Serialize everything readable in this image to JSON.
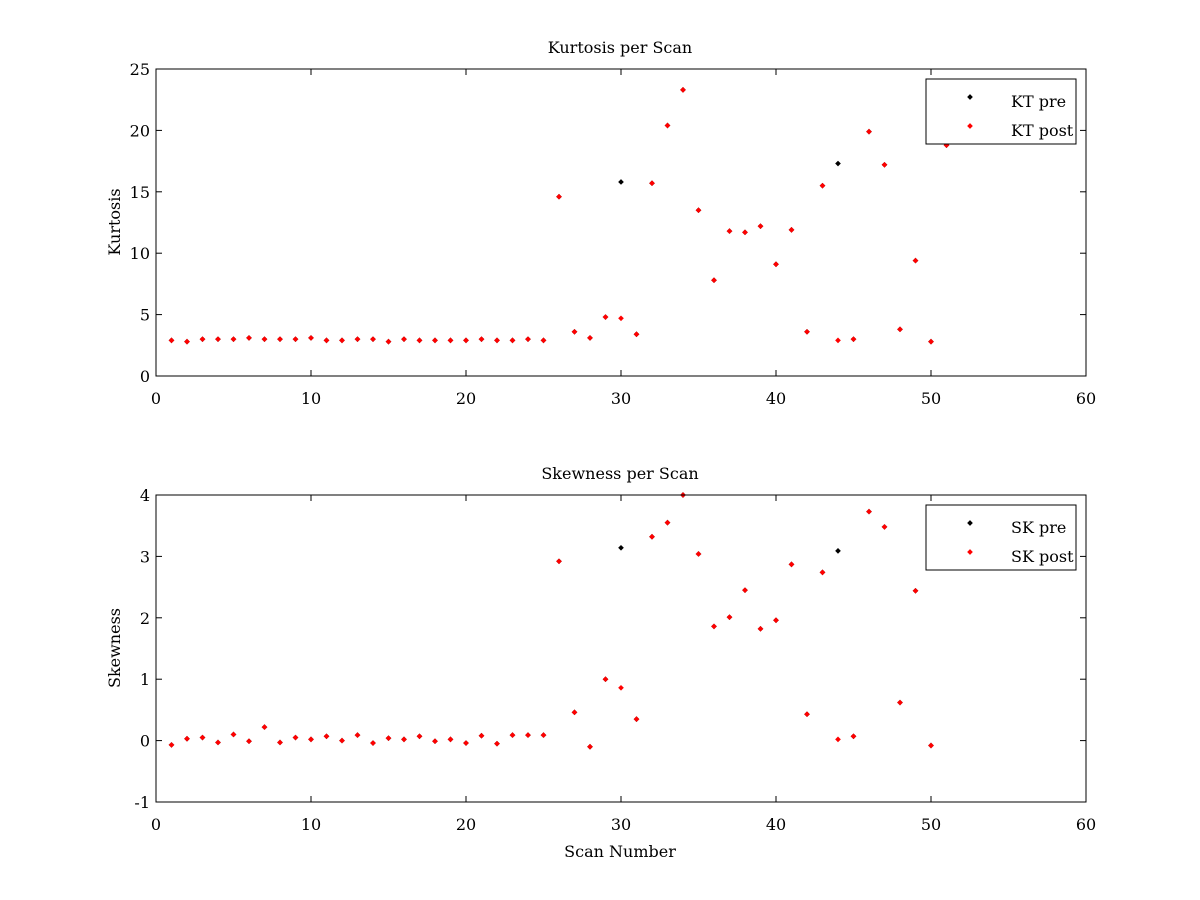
{
  "colors": {
    "pre": "#000000",
    "post": "#ff0000",
    "axis": "#000000",
    "background": "#ffffff"
  },
  "chart_data": [
    {
      "type": "scatter",
      "title": "Kurtosis per Scan",
      "xlabel": "",
      "ylabel": "Kurtosis",
      "xlim": [
        0,
        60
      ],
      "ylim": [
        0,
        25
      ],
      "xticks": [
        0,
        10,
        20,
        30,
        40,
        50,
        60
      ],
      "yticks": [
        0,
        5,
        10,
        15,
        20,
        25
      ],
      "legend_position": "top-right",
      "series": [
        {
          "name": "KT pre",
          "color": "#000000",
          "points": [
            [
              1,
              2.9
            ],
            [
              2,
              2.8
            ],
            [
              3,
              3.0
            ],
            [
              4,
              3.0
            ],
            [
              5,
              3.0
            ],
            [
              6,
              3.1
            ],
            [
              7,
              3.0
            ],
            [
              8,
              3.0
            ],
            [
              9,
              3.0
            ],
            [
              10,
              3.1
            ],
            [
              11,
              2.9
            ],
            [
              12,
              2.9
            ],
            [
              13,
              3.0
            ],
            [
              14,
              3.0
            ],
            [
              15,
              2.8
            ],
            [
              16,
              3.0
            ],
            [
              17,
              2.9
            ],
            [
              18,
              2.9
            ],
            [
              19,
              2.9
            ],
            [
              20,
              2.9
            ],
            [
              21,
              3.0
            ],
            [
              22,
              2.9
            ],
            [
              23,
              2.9
            ],
            [
              24,
              3.0
            ],
            [
              25,
              2.9
            ],
            [
              26,
              14.6
            ],
            [
              27,
              3.6
            ],
            [
              28,
              3.1
            ],
            [
              29,
              4.8
            ],
            [
              30,
              15.8
            ],
            [
              31,
              3.4
            ],
            [
              32,
              15.7
            ],
            [
              33,
              20.4
            ],
            [
              34,
              23.3
            ],
            [
              35,
              13.5
            ],
            [
              36,
              7.8
            ],
            [
              37,
              11.8
            ],
            [
              38,
              11.7
            ],
            [
              39,
              12.2
            ],
            [
              40,
              9.1
            ],
            [
              41,
              11.9
            ],
            [
              42,
              3.6
            ],
            [
              43,
              15.5
            ],
            [
              44,
              17.3
            ],
            [
              45,
              3.0
            ],
            [
              46,
              19.9
            ],
            [
              47,
              17.2
            ],
            [
              48,
              3.8
            ],
            [
              49,
              9.4
            ],
            [
              50,
              2.8
            ],
            [
              51,
              18.8
            ]
          ]
        },
        {
          "name": "KT post",
          "color": "#ff0000",
          "points": [
            [
              1,
              2.9
            ],
            [
              2,
              2.8
            ],
            [
              3,
              3.0
            ],
            [
              4,
              3.0
            ],
            [
              5,
              3.0
            ],
            [
              6,
              3.1
            ],
            [
              7,
              3.0
            ],
            [
              8,
              3.0
            ],
            [
              9,
              3.0
            ],
            [
              10,
              3.1
            ],
            [
              11,
              2.9
            ],
            [
              12,
              2.9
            ],
            [
              13,
              3.0
            ],
            [
              14,
              3.0
            ],
            [
              15,
              2.8
            ],
            [
              16,
              3.0
            ],
            [
              17,
              2.9
            ],
            [
              18,
              2.9
            ],
            [
              19,
              2.9
            ],
            [
              20,
              2.9
            ],
            [
              21,
              3.0
            ],
            [
              22,
              2.9
            ],
            [
              23,
              2.9
            ],
            [
              24,
              3.0
            ],
            [
              25,
              2.9
            ],
            [
              26,
              14.6
            ],
            [
              27,
              3.6
            ],
            [
              28,
              3.1
            ],
            [
              29,
              4.8
            ],
            [
              30,
              4.7
            ],
            [
              31,
              3.4
            ],
            [
              32,
              15.7
            ],
            [
              33,
              20.4
            ],
            [
              34,
              23.3
            ],
            [
              35,
              13.5
            ],
            [
              36,
              7.8
            ],
            [
              37,
              11.8
            ],
            [
              38,
              11.7
            ],
            [
              39,
              12.2
            ],
            [
              40,
              9.1
            ],
            [
              41,
              11.9
            ],
            [
              42,
              3.6
            ],
            [
              43,
              15.5
            ],
            [
              44,
              2.9
            ],
            [
              45,
              3.0
            ],
            [
              46,
              19.9
            ],
            [
              47,
              17.2
            ],
            [
              48,
              3.8
            ],
            [
              49,
              9.4
            ],
            [
              50,
              2.8
            ],
            [
              51,
              18.8
            ]
          ]
        }
      ]
    },
    {
      "type": "scatter",
      "title": "Skewness per Scan",
      "xlabel": "Scan Number",
      "ylabel": "Skewness",
      "xlim": [
        0,
        60
      ],
      "ylim": [
        -1,
        4
      ],
      "xticks": [
        0,
        10,
        20,
        30,
        40,
        50,
        60
      ],
      "yticks": [
        -1,
        0,
        1,
        2,
        3,
        4
      ],
      "legend_position": "top-right",
      "series": [
        {
          "name": "SK pre",
          "color": "#000000",
          "points": [
            [
              1,
              -0.07
            ],
            [
              2,
              0.03
            ],
            [
              3,
              0.05
            ],
            [
              4,
              -0.03
            ],
            [
              5,
              0.1
            ],
            [
              6,
              -0.01
            ],
            [
              7,
              0.22
            ],
            [
              8,
              -0.03
            ],
            [
              9,
              0.05
            ],
            [
              10,
              0.02
            ],
            [
              11,
              0.07
            ],
            [
              12,
              0.0
            ],
            [
              13,
              0.09
            ],
            [
              14,
              -0.04
            ],
            [
              15,
              0.04
            ],
            [
              16,
              0.02
            ],
            [
              17,
              0.07
            ],
            [
              18,
              -0.01
            ],
            [
              19,
              0.02
            ],
            [
              20,
              -0.04
            ],
            [
              21,
              0.08
            ],
            [
              22,
              -0.05
            ],
            [
              23,
              0.09
            ],
            [
              24,
              0.09
            ],
            [
              25,
              0.09
            ],
            [
              26,
              2.92
            ],
            [
              27,
              0.46
            ],
            [
              28,
              -0.1
            ],
            [
              29,
              1.0
            ],
            [
              30,
              3.14
            ],
            [
              31,
              0.35
            ],
            [
              32,
              3.32
            ],
            [
              33,
              3.55
            ],
            [
              34,
              4.0
            ],
            [
              35,
              3.04
            ],
            [
              36,
              1.86
            ],
            [
              37,
              2.01
            ],
            [
              38,
              2.45
            ],
            [
              39,
              1.82
            ],
            [
              40,
              1.96
            ],
            [
              41,
              2.87
            ],
            [
              42,
              0.43
            ],
            [
              43,
              2.74
            ],
            [
              44,
              3.09
            ],
            [
              45,
              0.07
            ],
            [
              46,
              3.73
            ],
            [
              47,
              3.48
            ],
            [
              48,
              0.62
            ],
            [
              49,
              2.44
            ],
            [
              50,
              -0.08
            ]
          ]
        },
        {
          "name": "SK post",
          "color": "#ff0000",
          "points": [
            [
              1,
              -0.07
            ],
            [
              2,
              0.03
            ],
            [
              3,
              0.05
            ],
            [
              4,
              -0.03
            ],
            [
              5,
              0.1
            ],
            [
              6,
              -0.01
            ],
            [
              7,
              0.22
            ],
            [
              8,
              -0.03
            ],
            [
              9,
              0.05
            ],
            [
              10,
              0.02
            ],
            [
              11,
              0.07
            ],
            [
              12,
              0.0
            ],
            [
              13,
              0.09
            ],
            [
              14,
              -0.04
            ],
            [
              15,
              0.04
            ],
            [
              16,
              0.02
            ],
            [
              17,
              0.07
            ],
            [
              18,
              -0.01
            ],
            [
              19,
              0.02
            ],
            [
              20,
              -0.04
            ],
            [
              21,
              0.08
            ],
            [
              22,
              -0.05
            ],
            [
              23,
              0.09
            ],
            [
              24,
              0.09
            ],
            [
              25,
              0.09
            ],
            [
              26,
              2.92
            ],
            [
              27,
              0.46
            ],
            [
              28,
              -0.1
            ],
            [
              29,
              1.0
            ],
            [
              30,
              0.86
            ],
            [
              31,
              0.35
            ],
            [
              32,
              3.32
            ],
            [
              33,
              3.55
            ],
            [
              34,
              4.0
            ],
            [
              35,
              3.04
            ],
            [
              36,
              1.86
            ],
            [
              37,
              2.01
            ],
            [
              38,
              2.45
            ],
            [
              39,
              1.82
            ],
            [
              40,
              1.96
            ],
            [
              41,
              2.87
            ],
            [
              42,
              0.43
            ],
            [
              43,
              2.74
            ],
            [
              44,
              0.02
            ],
            [
              45,
              0.07
            ],
            [
              46,
              3.73
            ],
            [
              47,
              3.48
            ],
            [
              48,
              0.62
            ],
            [
              49,
              2.44
            ],
            [
              50,
              -0.08
            ]
          ]
        }
      ]
    }
  ]
}
